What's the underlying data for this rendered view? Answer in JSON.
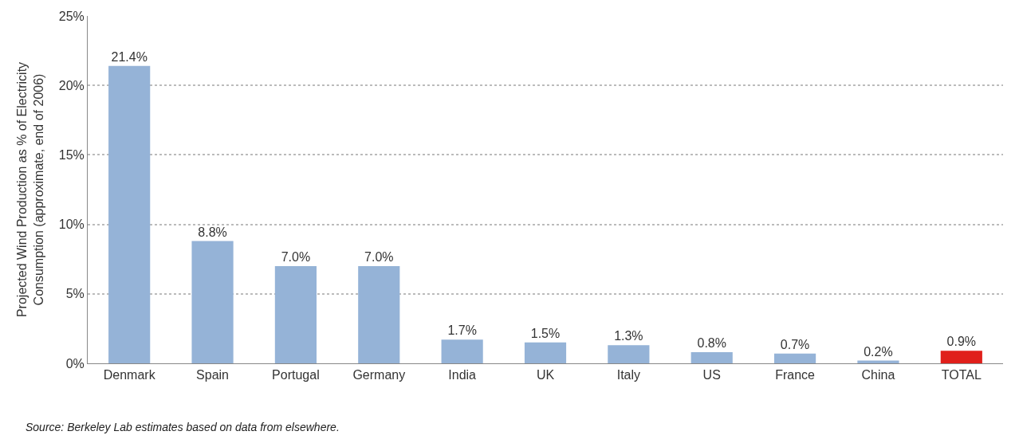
{
  "chart_data": {
    "type": "bar",
    "ylabel": "Projected Wind Production as % of Electricity\nConsumption (approximate, end of 2006)",
    "categories": [
      "Denmark",
      "Spain",
      "Portugal",
      "Germany",
      "India",
      "UK",
      "Italy",
      "US",
      "France",
      "China",
      "TOTAL"
    ],
    "values": [
      21.4,
      8.8,
      7.0,
      7.0,
      1.7,
      1.5,
      1.3,
      0.8,
      0.7,
      0.2,
      0.9
    ],
    "colors": [
      "#95b3d7",
      "#95b3d7",
      "#95b3d7",
      "#95b3d7",
      "#95b3d7",
      "#95b3d7",
      "#95b3d7",
      "#95b3d7",
      "#95b3d7",
      "#95b3d7",
      "#e0201b"
    ],
    "value_labels": [
      "21.4%",
      "8.8%",
      "7.0%",
      "7.0%",
      "1.7%",
      "1.5%",
      "1.3%",
      "0.8%",
      "0.7%",
      "0.2%",
      "0.9%"
    ],
    "ylim": [
      0,
      25
    ],
    "yticks": [
      {
        "value": 0,
        "label": "0%"
      },
      {
        "value": 5,
        "label": "5%"
      },
      {
        "value": 10,
        "label": "10%"
      },
      {
        "value": 15,
        "label": "15%"
      },
      {
        "value": 20,
        "label": "20%"
      },
      {
        "value": 25,
        "label": "25%"
      }
    ],
    "grid": "y",
    "annotations": [
      "Source: Berkeley Lab estimates based on data from elsewhere."
    ]
  }
}
